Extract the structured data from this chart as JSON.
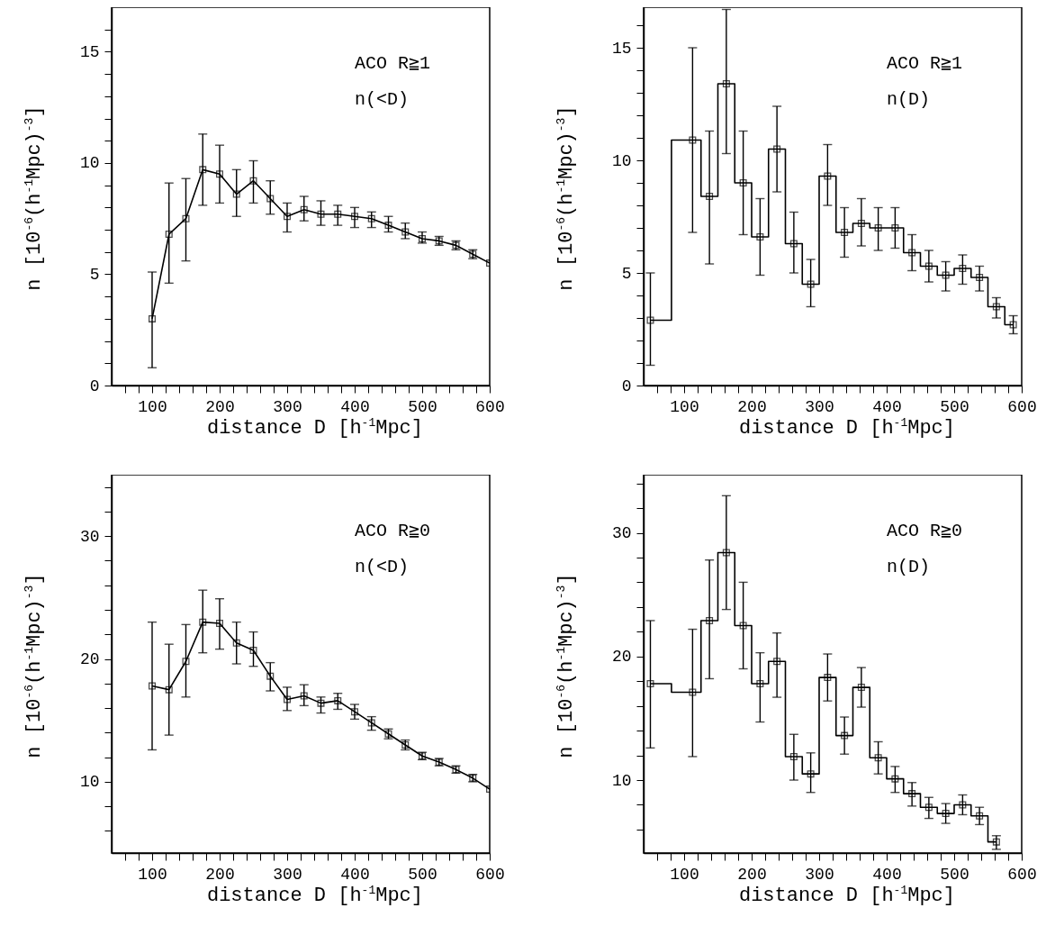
{
  "chart_data": [
    {
      "type": "line",
      "xlabel": "distance D [h$^{-1}$Mpc]",
      "ylabel": "n  [10$^{-6}$(h$^{-1}$Mpc)$^{-3}$]",
      "annotations": [
        "ACO R≧1",
        "n(<D)"
      ],
      "marker": "square",
      "line_style": "solid",
      "grid": false,
      "color": "#000000",
      "x": [
        100,
        125,
        150,
        175,
        200,
        225,
        250,
        275,
        300,
        325,
        350,
        375,
        400,
        425,
        450,
        475,
        500,
        525,
        550,
        575,
        600
      ],
      "values": [
        3.0,
        6.8,
        7.5,
        9.7,
        9.5,
        8.6,
        9.2,
        8.4,
        7.6,
        7.9,
        7.7,
        7.7,
        7.6,
        7.5,
        7.2,
        6.9,
        6.6,
        6.5,
        6.3,
        5.9,
        5.5
      ],
      "errors": [
        [
          0.8,
          5.1
        ],
        [
          4.6,
          9.1
        ],
        [
          5.6,
          9.3
        ],
        [
          8.1,
          11.3
        ],
        [
          8.2,
          10.8
        ],
        [
          7.6,
          9.7
        ],
        [
          8.2,
          10.1
        ],
        [
          7.7,
          9.2
        ],
        [
          6.9,
          8.2
        ],
        [
          7.4,
          8.5
        ],
        [
          7.2,
          8.3
        ],
        [
          7.2,
          8.1
        ],
        [
          7.1,
          8.0
        ],
        [
          7.1,
          7.8
        ],
        [
          6.9,
          7.6
        ],
        [
          6.6,
          7.3
        ],
        [
          6.4,
          6.9
        ],
        [
          6.3,
          6.7
        ],
        [
          6.1,
          6.5
        ],
        [
          5.7,
          6.1
        ],
        null
      ],
      "xlim": [
        40,
        600
      ],
      "xticks": [
        {
          "value": 60,
          "label": null
        },
        {
          "value": 80,
          "label": null
        },
        100,
        {
          "value": 120,
          "label": null
        },
        {
          "value": 140,
          "label": null
        },
        {
          "value": 160,
          "label": null
        },
        {
          "value": 180,
          "label": null
        },
        200,
        {
          "value": 220,
          "label": null
        },
        {
          "value": 240,
          "label": null
        },
        {
          "value": 260,
          "label": null
        },
        {
          "value": 280,
          "label": null
        },
        300,
        {
          "value": 320,
          "label": null
        },
        {
          "value": 340,
          "label": null
        },
        {
          "value": 360,
          "label": null
        },
        {
          "value": 380,
          "label": null
        },
        400,
        {
          "value": 420,
          "label": null
        },
        {
          "value": 440,
          "label": null
        },
        {
          "value": 460,
          "label": null
        },
        {
          "value": 480,
          "label": null
        },
        500,
        {
          "value": 520,
          "label": null
        },
        {
          "value": 540,
          "label": null
        },
        {
          "value": 560,
          "label": null
        },
        {
          "value": 580,
          "label": null
        },
        600
      ],
      "ylim": [
        0,
        17
      ],
      "yticks": [
        0,
        {
          "value": 1,
          "label": null
        },
        {
          "value": 2,
          "label": null
        },
        {
          "value": 3,
          "label": null
        },
        {
          "value": 4,
          "label": null
        },
        5,
        {
          "value": 6,
          "label": null
        },
        {
          "value": 7,
          "label": null
        },
        {
          "value": 8,
          "label": null
        },
        {
          "value": 9,
          "label": null
        },
        10,
        {
          "value": 11,
          "label": null
        },
        {
          "value": 12,
          "label": null
        },
        {
          "value": 13,
          "label": null
        },
        {
          "value": 14,
          "label": null
        },
        15,
        {
          "value": 16,
          "label": null
        }
      ]
    },
    {
      "type": "step",
      "xlabel": "distance D [h$^{-1}$Mpc]",
      "ylabel": "n  [10$^{-6}$(h$^{-1}$Mpc)$^{-3}$]",
      "annotations": [
        "ACO R≧1",
        "n(D)"
      ],
      "marker": "square",
      "line_style": "solid",
      "grid": false,
      "color": "#000000",
      "x": [
        50,
        112.5,
        137.5,
        162.5,
        187.5,
        212.5,
        237.5,
        262.5,
        287.5,
        312.5,
        337.5,
        362.5,
        387.5,
        412.5,
        437.5,
        462.5,
        487.5,
        512.5,
        537.5,
        562.5,
        587.5
      ],
      "values": [
        2.9,
        10.9,
        8.4,
        13.4,
        9.0,
        6.6,
        10.5,
        6.3,
        4.5,
        9.3,
        6.8,
        7.2,
        7.0,
        7.0,
        5.9,
        5.3,
        4.9,
        5.2,
        4.8,
        3.5,
        2.7
      ],
      "errors": [
        [
          0.9,
          5.0
        ],
        [
          6.8,
          15.0
        ],
        [
          5.4,
          11.3
        ],
        [
          10.3,
          16.7
        ],
        [
          6.7,
          11.3
        ],
        [
          4.9,
          8.3
        ],
        [
          8.6,
          12.4
        ],
        [
          5.0,
          7.7
        ],
        [
          3.5,
          5.6
        ],
        [
          8.0,
          10.7
        ],
        [
          5.7,
          7.9
        ],
        [
          6.2,
          8.3
        ],
        [
          6.0,
          7.9
        ],
        [
          6.1,
          7.9
        ],
        [
          5.1,
          6.7
        ],
        [
          4.6,
          6.0
        ],
        [
          4.2,
          5.5
        ],
        [
          4.5,
          5.8
        ],
        [
          4.2,
          5.3
        ],
        [
          3.0,
          3.9
        ],
        [
          2.3,
          3.1
        ]
      ],
      "xlim": [
        40,
        600
      ],
      "xticks": [
        {
          "value": 60,
          "label": null
        },
        {
          "value": 80,
          "label": null
        },
        100,
        {
          "value": 120,
          "label": null
        },
        {
          "value": 140,
          "label": null
        },
        {
          "value": 160,
          "label": null
        },
        {
          "value": 180,
          "label": null
        },
        200,
        {
          "value": 220,
          "label": null
        },
        {
          "value": 240,
          "label": null
        },
        {
          "value": 260,
          "label": null
        },
        {
          "value": 280,
          "label": null
        },
        300,
        {
          "value": 320,
          "label": null
        },
        {
          "value": 340,
          "label": null
        },
        {
          "value": 360,
          "label": null
        },
        {
          "value": 380,
          "label": null
        },
        400,
        {
          "value": 420,
          "label": null
        },
        {
          "value": 440,
          "label": null
        },
        {
          "value": 460,
          "label": null
        },
        {
          "value": 480,
          "label": null
        },
        500,
        {
          "value": 520,
          "label": null
        },
        {
          "value": 540,
          "label": null
        },
        {
          "value": 560,
          "label": null
        },
        {
          "value": 580,
          "label": null
        },
        600
      ],
      "ylim": [
        0,
        16.8
      ],
      "yticks": [
        0,
        {
          "value": 1,
          "label": null
        },
        {
          "value": 2,
          "label": null
        },
        {
          "value": 3,
          "label": null
        },
        {
          "value": 4,
          "label": null
        },
        5,
        {
          "value": 6,
          "label": null
        },
        {
          "value": 7,
          "label": null
        },
        {
          "value": 8,
          "label": null
        },
        {
          "value": 9,
          "label": null
        },
        10,
        {
          "value": 11,
          "label": null
        },
        {
          "value": 12,
          "label": null
        },
        {
          "value": 13,
          "label": null
        },
        {
          "value": 14,
          "label": null
        },
        15,
        {
          "value": 16,
          "label": null
        }
      ]
    },
    {
      "type": "line",
      "xlabel": "distance D [h$^{-1}$Mpc]",
      "ylabel": "n  [10$^{-6}$(h$^{-1}$Mpc)$^{-3}$]",
      "annotations": [
        "ACO R≧0",
        "n(<D)"
      ],
      "marker": "square",
      "line_style": "solid",
      "grid": false,
      "color": "#000000",
      "x": [
        100,
        125,
        150,
        175,
        200,
        225,
        250,
        275,
        300,
        325,
        350,
        375,
        400,
        425,
        450,
        475,
        500,
        525,
        550,
        575,
        600
      ],
      "values": [
        17.8,
        17.5,
        19.8,
        23.0,
        22.9,
        21.3,
        20.7,
        18.6,
        16.7,
        17.0,
        16.4,
        16.6,
        15.7,
        14.8,
        13.9,
        13.0,
        12.1,
        11.6,
        11.0,
        10.3,
        9.4
      ],
      "errors": [
        [
          12.6,
          23.0
        ],
        [
          13.8,
          21.2
        ],
        [
          16.9,
          22.8
        ],
        [
          20.5,
          25.6
        ],
        [
          20.8,
          24.9
        ],
        [
          19.6,
          23.0
        ],
        [
          19.4,
          22.2
        ],
        [
          17.4,
          19.7
        ],
        [
          15.8,
          17.7
        ],
        [
          16.2,
          17.9
        ],
        [
          15.6,
          16.9
        ],
        [
          15.9,
          17.2
        ],
        [
          15.1,
          16.3
        ],
        [
          14.2,
          15.3
        ],
        [
          13.5,
          14.3
        ],
        [
          12.6,
          13.4
        ],
        [
          11.8,
          12.4
        ],
        [
          11.3,
          11.9
        ],
        [
          10.7,
          11.3
        ],
        [
          10.0,
          10.6
        ],
        null
      ],
      "xlim": [
        40,
        600
      ],
      "xticks": [
        {
          "value": 60,
          "label": null
        },
        {
          "value": 80,
          "label": null
        },
        100,
        {
          "value": 120,
          "label": null
        },
        {
          "value": 140,
          "label": null
        },
        {
          "value": 160,
          "label": null
        },
        {
          "value": 180,
          "label": null
        },
        200,
        {
          "value": 220,
          "label": null
        },
        {
          "value": 240,
          "label": null
        },
        {
          "value": 260,
          "label": null
        },
        {
          "value": 280,
          "label": null
        },
        300,
        {
          "value": 320,
          "label": null
        },
        {
          "value": 340,
          "label": null
        },
        {
          "value": 360,
          "label": null
        },
        {
          "value": 380,
          "label": null
        },
        400,
        {
          "value": 420,
          "label": null
        },
        {
          "value": 440,
          "label": null
        },
        {
          "value": 460,
          "label": null
        },
        {
          "value": 480,
          "label": null
        },
        500,
        {
          "value": 520,
          "label": null
        },
        {
          "value": 540,
          "label": null
        },
        {
          "value": 560,
          "label": null
        },
        {
          "value": 580,
          "label": null
        },
        600
      ],
      "ylim": [
        4.2,
        35
      ],
      "yticks": [
        {
          "value": 6,
          "label": null
        },
        {
          "value": 8,
          "label": null
        },
        10,
        {
          "value": 12,
          "label": null
        },
        {
          "value": 14,
          "label": null
        },
        {
          "value": 16,
          "label": null
        },
        {
          "value": 18,
          "label": null
        },
        20,
        {
          "value": 22,
          "label": null
        },
        {
          "value": 24,
          "label": null
        },
        {
          "value": 26,
          "label": null
        },
        {
          "value": 28,
          "label": null
        },
        30,
        {
          "value": 32,
          "label": null
        },
        {
          "value": 34,
          "label": null
        }
      ]
    },
    {
      "type": "step",
      "xlabel": "distance D [h$^{-1}$Mpc]",
      "ylabel": "n  [10$^{-6}$(h$^{-1}$Mpc)$^{-3}$]",
      "annotations": [
        "ACO R≧0",
        "n(D)"
      ],
      "marker": "square",
      "line_style": "solid",
      "grid": false,
      "color": "#000000",
      "x": [
        50,
        112.5,
        137.5,
        162.5,
        187.5,
        212.5,
        237.5,
        262.5,
        287.5,
        312.5,
        337.5,
        362.5,
        387.5,
        412.5,
        437.5,
        462.5,
        487.5,
        512.5,
        537.5,
        562.5
      ],
      "values": [
        17.8,
        17.1,
        22.9,
        28.4,
        22.5,
        17.8,
        19.6,
        11.9,
        10.5,
        18.3,
        13.6,
        17.5,
        11.8,
        10.1,
        8.9,
        7.8,
        7.3,
        8.0,
        7.1,
        5.0
      ],
      "errors": [
        [
          12.6,
          22.9
        ],
        [
          11.9,
          22.2
        ],
        [
          18.2,
          27.8
        ],
        [
          23.8,
          33.0
        ],
        [
          19.0,
          26.0
        ],
        [
          14.7,
          20.3
        ],
        [
          16.7,
          21.9
        ],
        [
          10.0,
          13.7
        ],
        [
          9.0,
          12.2
        ],
        [
          16.4,
          20.2
        ],
        [
          12.1,
          15.1
        ],
        [
          15.9,
          19.1
        ],
        [
          10.5,
          13.1
        ],
        [
          9.0,
          11.1
        ],
        [
          7.9,
          9.8
        ],
        [
          6.9,
          8.6
        ],
        [
          6.5,
          8.1
        ],
        [
          7.2,
          8.8
        ],
        [
          6.4,
          7.8
        ],
        [
          4.4,
          5.5
        ]
      ],
      "xlim": [
        40,
        600
      ],
      "xticks": [
        {
          "value": 60,
          "label": null
        },
        {
          "value": 80,
          "label": null
        },
        100,
        {
          "value": 120,
          "label": null
        },
        {
          "value": 140,
          "label": null
        },
        {
          "value": 160,
          "label": null
        },
        {
          "value": 180,
          "label": null
        },
        200,
        {
          "value": 220,
          "label": null
        },
        {
          "value": 240,
          "label": null
        },
        {
          "value": 260,
          "label": null
        },
        {
          "value": 280,
          "label": null
        },
        300,
        {
          "value": 320,
          "label": null
        },
        {
          "value": 340,
          "label": null
        },
        {
          "value": 360,
          "label": null
        },
        {
          "value": 380,
          "label": null
        },
        400,
        {
          "value": 420,
          "label": null
        },
        {
          "value": 440,
          "label": null
        },
        {
          "value": 460,
          "label": null
        },
        {
          "value": 480,
          "label": null
        },
        500,
        {
          "value": 520,
          "label": null
        },
        {
          "value": 540,
          "label": null
        },
        {
          "value": 560,
          "label": null
        },
        {
          "value": 580,
          "label": null
        },
        600
      ],
      "ylim": [
        4.1,
        34.7
      ],
      "yticks": [
        {
          "value": 6,
          "label": null
        },
        {
          "value": 8,
          "label": null
        },
        10,
        {
          "value": 12,
          "label": null
        },
        {
          "value": 14,
          "label": null
        },
        {
          "value": 16,
          "label": null
        },
        {
          "value": 18,
          "label": null
        },
        20,
        {
          "value": 22,
          "label": null
        },
        {
          "value": 24,
          "label": null
        },
        {
          "value": 26,
          "label": null
        },
        {
          "value": 28,
          "label": null
        },
        30,
        {
          "value": 32,
          "label": null
        },
        {
          "value": 34,
          "label": null
        }
      ]
    }
  ]
}
